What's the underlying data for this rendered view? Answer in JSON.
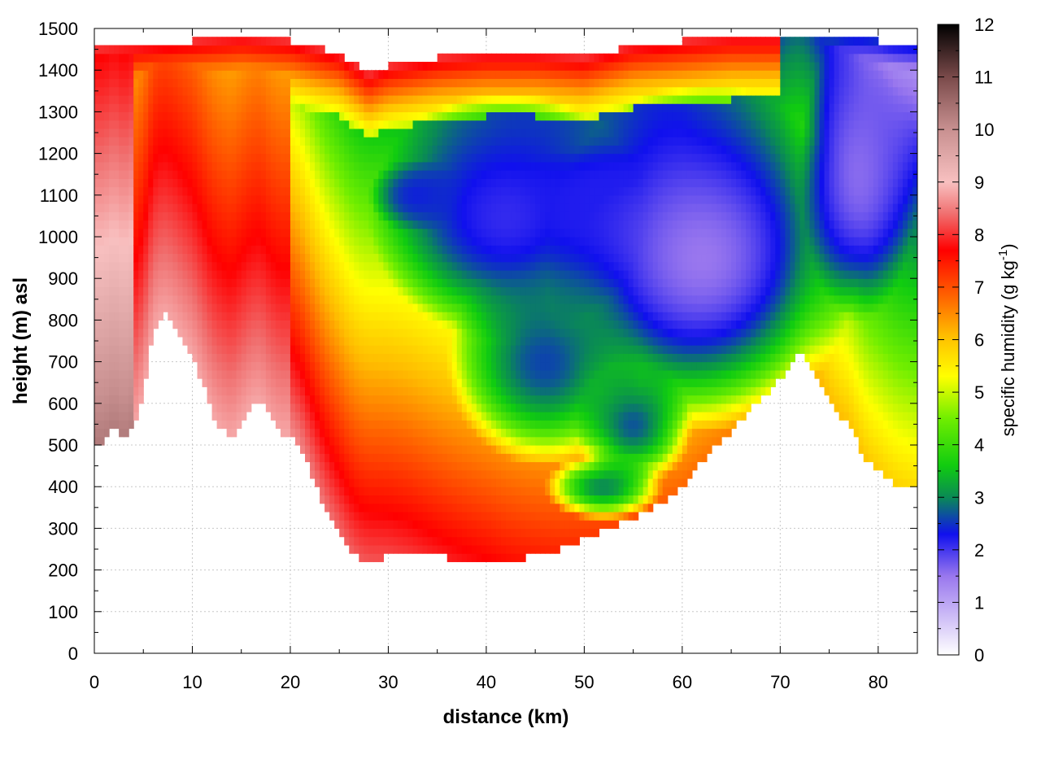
{
  "chart_data": {
    "type": "heatmap",
    "title": "",
    "xlabel": "distance (km)",
    "ylabel": "height (m) asl",
    "colorbar_label": "specific humidity (g kg",
    "colorbar_label_sup": "-1",
    "colorbar_label_close": ")",
    "xlim": [
      0,
      84
    ],
    "ylim": [
      0,
      1500
    ],
    "clim": [
      0,
      12
    ],
    "x_ticks": [
      0,
      10,
      20,
      30,
      40,
      50,
      60,
      70,
      80
    ],
    "y_ticks": [
      0,
      100,
      200,
      300,
      400,
      500,
      600,
      700,
      800,
      900,
      1000,
      1100,
      1200,
      1300,
      1400,
      1500
    ],
    "cb_ticks": [
      0,
      1,
      2,
      3,
      4,
      5,
      6,
      7,
      8,
      9,
      10,
      11,
      12
    ],
    "grid": true,
    "colormap": [
      {
        "v": 0,
        "color": "#ffffff"
      },
      {
        "v": 1.5,
        "color": "#9977ee"
      },
      {
        "v": 2.3,
        "color": "#1010ee"
      },
      {
        "v": 3.0,
        "color": "#0a8a55"
      },
      {
        "v": 3.6,
        "color": "#10cc10"
      },
      {
        "v": 4.5,
        "color": "#70ee00"
      },
      {
        "v": 5.3,
        "color": "#ffff00"
      },
      {
        "v": 6.1,
        "color": "#ffbb00"
      },
      {
        "v": 6.8,
        "color": "#ff6600"
      },
      {
        "v": 7.7,
        "color": "#ff0000"
      },
      {
        "v": 8.4,
        "color": "#f07070"
      },
      {
        "v": 9.0,
        "color": "#f8c0c0"
      },
      {
        "v": 10.0,
        "color": "#c89090"
      },
      {
        "v": 11.0,
        "color": "#7a4a4a"
      },
      {
        "v": 12.0,
        "color": "#000000"
      }
    ],
    "terrain_bottom": [
      [
        0,
        510
      ],
      [
        1,
        510
      ],
      [
        2,
        540
      ],
      [
        3,
        510
      ],
      [
        4,
        540
      ],
      [
        5,
        620
      ],
      [
        6,
        780
      ],
      [
        7,
        820
      ],
      [
        8,
        800
      ],
      [
        9,
        760
      ],
      [
        10,
        720
      ],
      [
        11,
        650
      ],
      [
        12,
        580
      ],
      [
        13,
        540
      ],
      [
        14,
        520
      ],
      [
        15,
        560
      ],
      [
        16,
        600
      ],
      [
        17,
        610
      ],
      [
        18,
        560
      ],
      [
        19,
        530
      ],
      [
        20,
        530
      ],
      [
        21,
        500
      ],
      [
        22,
        440
      ],
      [
        23,
        380
      ],
      [
        24,
        330
      ],
      [
        25,
        290
      ],
      [
        26,
        250
      ],
      [
        27,
        225
      ],
      [
        28,
        220
      ],
      [
        30,
        235
      ],
      [
        32,
        240
      ],
      [
        34,
        235
      ],
      [
        36,
        230
      ],
      [
        38,
        228
      ],
      [
        40,
        228
      ],
      [
        42,
        225
      ],
      [
        44,
        230
      ],
      [
        46,
        240
      ],
      [
        48,
        255
      ],
      [
        50,
        275
      ],
      [
        52,
        295
      ],
      [
        54,
        315
      ],
      [
        56,
        335
      ],
      [
        58,
        360
      ],
      [
        60,
        400
      ],
      [
        62,
        460
      ],
      [
        64,
        510
      ],
      [
        66,
        560
      ],
      [
        68,
        610
      ],
      [
        70,
        660
      ],
      [
        71,
        700
      ],
      [
        72,
        720
      ],
      [
        73,
        700
      ],
      [
        74,
        650
      ],
      [
        75,
        600
      ],
      [
        76,
        570
      ],
      [
        77,
        550
      ],
      [
        78,
        500
      ],
      [
        79,
        460
      ],
      [
        80,
        440
      ],
      [
        81,
        420
      ],
      [
        82,
        405
      ],
      [
        84,
        400
      ]
    ],
    "top_boundary": [
      [
        0,
        1450
      ],
      [
        5,
        1460
      ],
      [
        10,
        1470
      ],
      [
        15,
        1480
      ],
      [
        20,
        1470
      ],
      [
        25,
        1440
      ],
      [
        28,
        1390
      ],
      [
        30,
        1410
      ],
      [
        35,
        1430
      ],
      [
        40,
        1440
      ],
      [
        45,
        1440
      ],
      [
        50,
        1430
      ],
      [
        55,
        1460
      ],
      [
        60,
        1470
      ],
      [
        65,
        1480
      ],
      [
        70,
        1480
      ],
      [
        75,
        1470
      ],
      [
        80,
        1470
      ],
      [
        84,
        1460
      ]
    ],
    "cold_core": [
      {
        "x": 42,
        "y": 1050,
        "v": 2.1,
        "rx": 14,
        "ry": 300
      },
      {
        "x": 62,
        "y": 950,
        "v": 1.5,
        "rx": 16,
        "ry": 420
      },
      {
        "x": 78,
        "y": 1150,
        "v": 1.6,
        "rx": 6,
        "ry": 350
      },
      {
        "x": 52,
        "y": 1100,
        "v": 2.2,
        "rx": 10,
        "ry": 120
      },
      {
        "x": 33,
        "y": 1100,
        "v": 2.4,
        "rx": 5,
        "ry": 90
      },
      {
        "x": 46,
        "y": 700,
        "v": 2.6,
        "rx": 10,
        "ry": 250
      },
      {
        "x": 52,
        "y": 400,
        "v": 3.0,
        "rx": 6,
        "ry": 80
      },
      {
        "x": 55,
        "y": 550,
        "v": 2.7,
        "rx": 6,
        "ry": 150
      }
    ]
  }
}
